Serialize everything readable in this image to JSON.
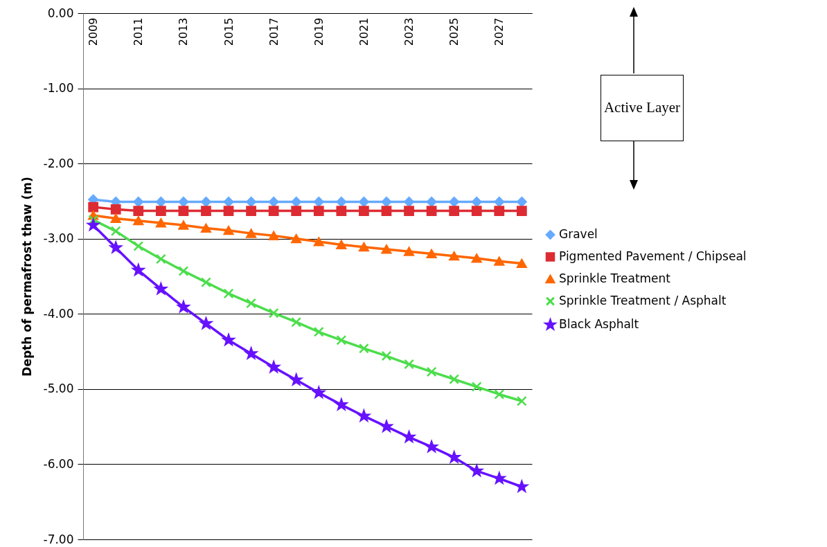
{
  "chart_data": {
    "type": "line",
    "ylabel": "Depth of permafrost thaw (m)",
    "categories": [
      "2009",
      null,
      "2011",
      null,
      "2013",
      null,
      "2015",
      null,
      "2017",
      null,
      "2019",
      null,
      "2021",
      null,
      "2023",
      null,
      "2025",
      null,
      "2027",
      null
    ],
    "series": [
      {
        "name": "Gravel",
        "color": "#66aaff",
        "marker": "diamond",
        "values": [
          -2.48,
          -2.51,
          -2.51,
          -2.51,
          -2.51,
          -2.51,
          -2.51,
          -2.51,
          -2.51,
          -2.51,
          -2.51,
          -2.51,
          -2.51,
          -2.51,
          -2.51,
          -2.51,
          -2.51,
          -2.51,
          -2.51,
          -2.51
        ]
      },
      {
        "name": "Pigmented Pavement / Chipseal",
        "color": "#dd2b33",
        "marker": "square",
        "values": [
          -2.58,
          -2.61,
          -2.63,
          -2.63,
          -2.63,
          -2.63,
          -2.63,
          -2.63,
          -2.63,
          -2.63,
          -2.63,
          -2.63,
          -2.63,
          -2.63,
          -2.63,
          -2.63,
          -2.63,
          -2.63,
          -2.63,
          -2.63
        ]
      },
      {
        "name": "Sprinkle Treatment",
        "color": "#ff6600",
        "marker": "triangle",
        "values": [
          -2.69,
          -2.73,
          -2.76,
          -2.79,
          -2.82,
          -2.86,
          -2.89,
          -2.93,
          -2.96,
          -3.0,
          -3.04,
          -3.08,
          -3.11,
          -3.14,
          -3.17,
          -3.2,
          -3.23,
          -3.26,
          -3.3,
          -3.33
        ]
      },
      {
        "name": "Sprinkle Treatment / Asphalt",
        "color": "#4cdd4c",
        "marker": "cross",
        "values": [
          -2.75,
          -2.9,
          -3.1,
          -3.27,
          -3.43,
          -3.58,
          -3.73,
          -3.86,
          -3.99,
          -4.11,
          -4.24,
          -4.35,
          -4.46,
          -4.56,
          -4.67,
          -4.77,
          -4.87,
          -4.97,
          -5.07,
          -5.16
        ]
      },
      {
        "name": "Black Asphalt",
        "color": "#6611ff",
        "marker": "star",
        "values": [
          -2.82,
          -3.12,
          -3.42,
          -3.67,
          -3.91,
          -4.13,
          -4.35,
          -4.53,
          -4.71,
          -4.88,
          -5.05,
          -5.21,
          -5.36,
          -5.5,
          -5.64,
          -5.77,
          -5.91,
          -6.09,
          -6.19,
          -6.3
        ]
      }
    ],
    "ylim": [
      -7,
      0
    ],
    "yticks": [
      {
        "value": 0,
        "label": "0.00"
      },
      {
        "value": -1,
        "label": "-1.00"
      },
      {
        "value": -2,
        "label": "-2.00"
      },
      {
        "value": -3,
        "label": "-3.00"
      },
      {
        "value": -4,
        "label": "-4.00"
      },
      {
        "value": -5,
        "label": "-5.00"
      },
      {
        "value": -6,
        "label": "-6.00"
      },
      {
        "value": -7,
        "label": "-7.00"
      }
    ],
    "grid": "y",
    "legend": "right",
    "annotations": [
      "Active Layer"
    ]
  }
}
